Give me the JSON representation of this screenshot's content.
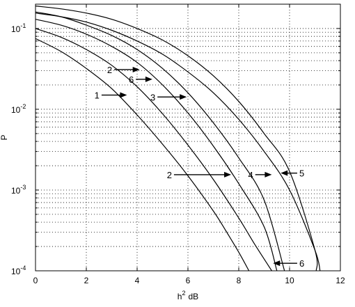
{
  "chart_data": {
    "type": "line",
    "xlabel": "h",
    "xlabel_sup": "2",
    "xlabel_unit": "dB",
    "ylabel": "P",
    "xlim": [
      0,
      12
    ],
    "ylim": [
      0.0001,
      0.2
    ],
    "yscale": "log",
    "grid": true,
    "x_ticks": [
      0,
      2,
      4,
      6,
      8,
      10,
      12
    ],
    "y_ticks": [
      {
        "value": 0.1,
        "base": "10",
        "exp": "-1"
      },
      {
        "value": 0.01,
        "base": "10",
        "exp": "-2"
      },
      {
        "value": 0.001,
        "base": "10",
        "exp": "-3"
      },
      {
        "value": 0.0001,
        "base": "10",
        "exp": "-4"
      }
    ],
    "series": [
      {
        "x": [
          0,
          1,
          2,
          3,
          4,
          5,
          6,
          7,
          7.5,
          8,
          8.4
        ],
        "y": [
          0.075,
          0.052,
          0.032,
          0.018,
          0.0085,
          0.0037,
          0.0015,
          0.00055,
          0.00031,
          0.00017,
          0.0001
        ]
      },
      {
        "x": [
          0,
          1,
          2,
          3,
          4,
          5,
          6,
          7,
          8,
          8.6,
          9.3
        ],
        "y": [
          0.1,
          0.078,
          0.055,
          0.035,
          0.019,
          0.0088,
          0.0036,
          0.00135,
          0.00045,
          0.00022,
          0.0001
        ]
      },
      {
        "x": [
          0,
          1,
          2,
          3,
          4,
          5,
          6,
          7,
          8,
          9,
          9.5
        ],
        "y": [
          0.13,
          0.11,
          0.085,
          0.06,
          0.038,
          0.02,
          0.009,
          0.0035,
          0.0012,
          0.00035,
          0.0001
        ]
      },
      {
        "x": [
          0,
          1,
          2,
          3,
          4,
          5,
          6,
          7,
          8,
          9,
          9.8
        ],
        "y": [
          0.16,
          0.14,
          0.11,
          0.082,
          0.055,
          0.032,
          0.016,
          0.0068,
          0.0025,
          0.00075,
          0.0001
        ]
      },
      {
        "x": [
          0,
          1,
          2,
          3,
          4,
          5,
          6,
          7,
          8,
          9,
          10,
          11,
          11.2
        ],
        "y": [
          0.155,
          0.14,
          0.12,
          0.095,
          0.07,
          0.048,
          0.029,
          0.016,
          0.0075,
          0.003,
          0.001,
          0.00018,
          0.0001
        ]
      },
      {
        "x": [
          0,
          1,
          2,
          3,
          4,
          5,
          6,
          7,
          8,
          9,
          10,
          11,
          11.05
        ],
        "y": [
          0.19,
          0.175,
          0.155,
          0.13,
          0.1,
          0.072,
          0.046,
          0.026,
          0.0125,
          0.005,
          0.0017,
          0.00018,
          0.0001
        ]
      }
    ],
    "annotations": [
      {
        "text": "1",
        "x": 3.6,
        "y": 0.015,
        "from_x": 2.6,
        "side": "left"
      },
      {
        "text": "2",
        "x": 4.1,
        "y": 0.031,
        "from_x": 3.1,
        "side": "left"
      },
      {
        "text": "6",
        "x": 4.6,
        "y": 0.0235,
        "from_x": 3.95,
        "side": "left"
      },
      {
        "text": "3",
        "x": 5.95,
        "y": 0.0142,
        "from_x": 4.8,
        "side": "left"
      },
      {
        "text": "2",
        "x": 7.7,
        "y": 0.00155,
        "from_x": 5.45,
        "side": "left"
      },
      {
        "text": "4",
        "x": 9.3,
        "y": 0.00155,
        "from_x": 8.65,
        "side": "left"
      },
      {
        "text": "5",
        "x": 9.65,
        "y": 0.00162,
        "from_x": 10.3,
        "side": "right"
      },
      {
        "text": "6",
        "x": 9.35,
        "y": 0.000124,
        "from_x": 10.3,
        "side": "right"
      }
    ]
  }
}
